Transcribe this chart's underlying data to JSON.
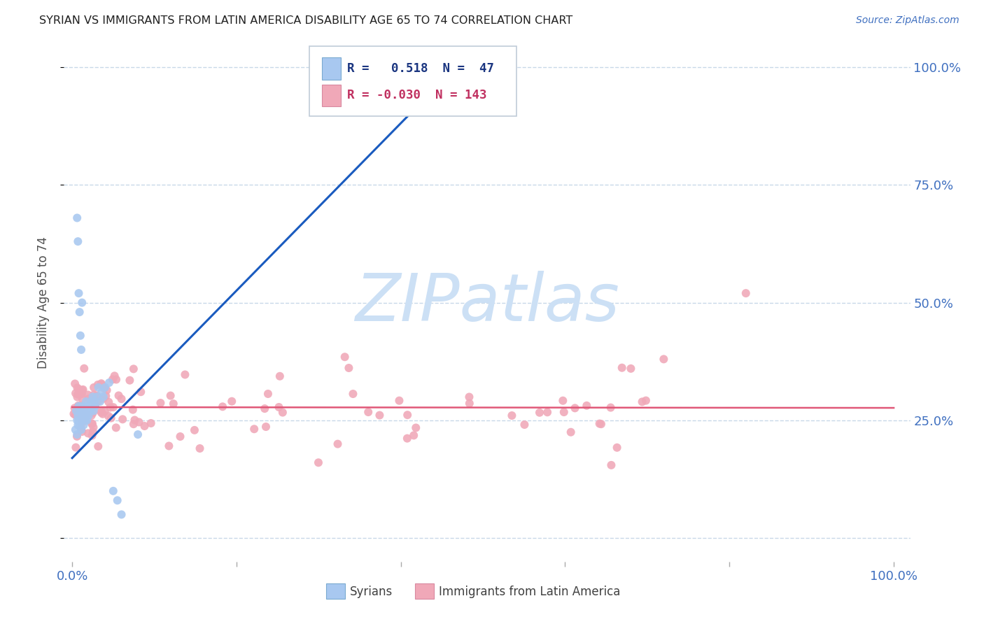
{
  "title": "SYRIAN VS IMMIGRANTS FROM LATIN AMERICA DISABILITY AGE 65 TO 74 CORRELATION CHART",
  "source": "Source: ZipAtlas.com",
  "ylabel": "Disability Age 65 to 74",
  "syrians_color": "#a8c8f0",
  "latin_color": "#f0a8b8",
  "trendline_syrian_color": "#1a5bbf",
  "trendline_latin_color": "#e05878",
  "background_color": "#ffffff",
  "watermark_text": "ZIPatlas",
  "watermark_color": "#cce0f5",
  "syrian_R": 0.518,
  "syrian_N": 47,
  "latin_R": -0.03,
  "latin_N": 143,
  "grid_color": "#c8d8e8",
  "tick_label_color": "#4070c0",
  "title_color": "#202020",
  "source_color": "#4070c0",
  "ylabel_color": "#505050",
  "legend_text_blue_color": "#1a3580",
  "legend_text_pink_color": "#c03060"
}
